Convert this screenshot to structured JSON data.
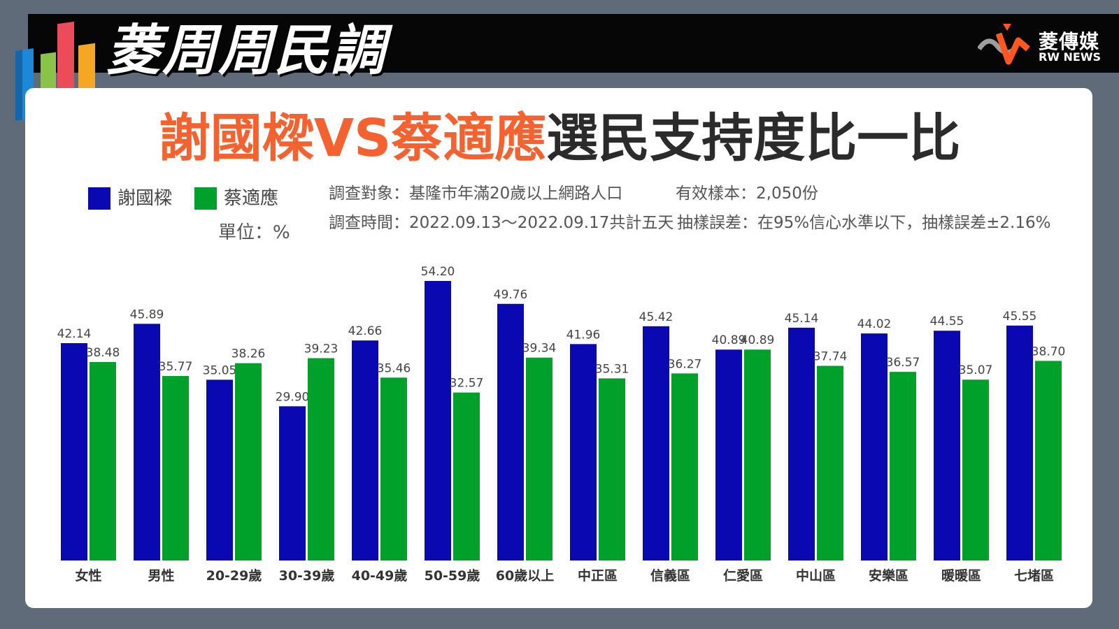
{
  "header": {
    "brand_title": "菱周周民調",
    "logo_cn": "菱傳媒",
    "logo_en": "RW NEWS"
  },
  "headline": {
    "part_a": "謝國樑VS蔡適應",
    "part_b": "選民支持度比一比",
    "color_a": "#f4622f",
    "color_b": "#2b2b2b"
  },
  "survey": {
    "target": "調查對象：基隆市年滿20歲以上網路人口",
    "sample": "有效樣本：2,050份",
    "period": "調查時間：2022.09.13～2022.09.17共計五天",
    "error": "抽樣誤差：在95%信心水準以下，抽樣誤差±2.16%"
  },
  "legend": {
    "unit": "單位：%"
  },
  "chart_data": {
    "type": "bar",
    "categories": [
      "女性",
      "男性",
      "20-29歲",
      "30-39歲",
      "40-49歲",
      "50-59歲",
      "60歲以上",
      "中正區",
      "信義區",
      "仁愛區",
      "中山區",
      "安樂區",
      "暖暖區",
      "七堵區"
    ],
    "series": [
      {
        "name": "謝國樑",
        "color": "#0a08b0",
        "values": [
          42.14,
          45.89,
          35.05,
          29.9,
          42.66,
          54.2,
          49.76,
          41.96,
          45.42,
          40.89,
          45.14,
          44.02,
          44.55,
          45.55
        ]
      },
      {
        "name": "蔡適應",
        "color": "#00a12a",
        "values": [
          38.48,
          35.77,
          38.26,
          39.23,
          35.46,
          32.57,
          39.34,
          35.31,
          36.27,
          40.89,
          37.74,
          36.57,
          35.07,
          38.7
        ]
      }
    ],
    "ylim": [
      0,
      54.2
    ],
    "grid": false,
    "legend_position": "top-left"
  }
}
